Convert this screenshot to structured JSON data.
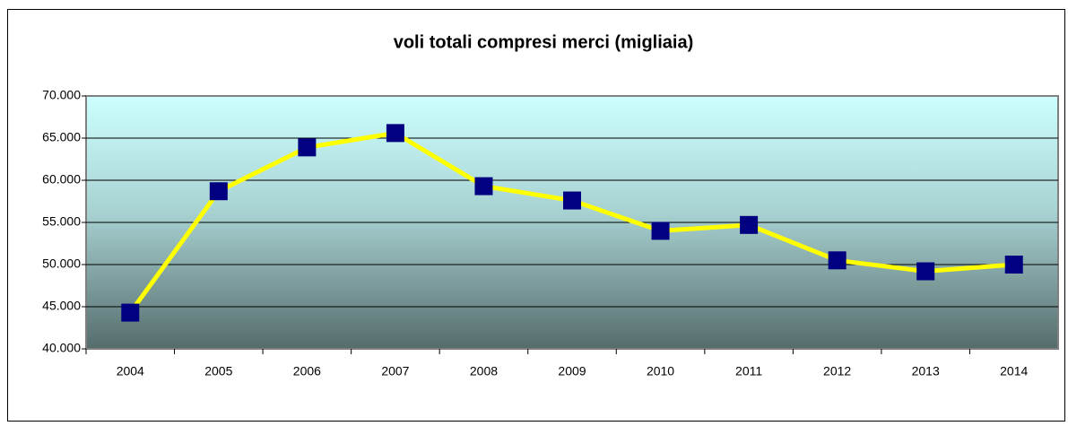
{
  "chart_data": {
    "type": "line",
    "title": "voli totali compresi merci (migliaia)",
    "categories": [
      "2004",
      "2005",
      "2006",
      "2007",
      "2008",
      "2009",
      "2010",
      "2011",
      "2012",
      "2013",
      "2014"
    ],
    "series": [
      {
        "name": "voli totali",
        "color": "#ffff00",
        "marker_color": "#000080",
        "values": [
          44300,
          58700,
          63900,
          65600,
          59300,
          57600,
          54000,
          54700,
          50500,
          49200,
          50000
        ]
      }
    ],
    "ylim": [
      40000,
      70000
    ],
    "yticks": [
      {
        "value": 40000,
        "label": "40.000"
      },
      {
        "value": 45000,
        "label": "45.000"
      },
      {
        "value": 50000,
        "label": "50.000"
      },
      {
        "value": 55000,
        "label": "55.000"
      },
      {
        "value": 60000,
        "label": "60.000"
      },
      {
        "value": 65000,
        "label": "65.000"
      },
      {
        "value": 70000,
        "label": "70.000"
      }
    ],
    "grid": true
  }
}
